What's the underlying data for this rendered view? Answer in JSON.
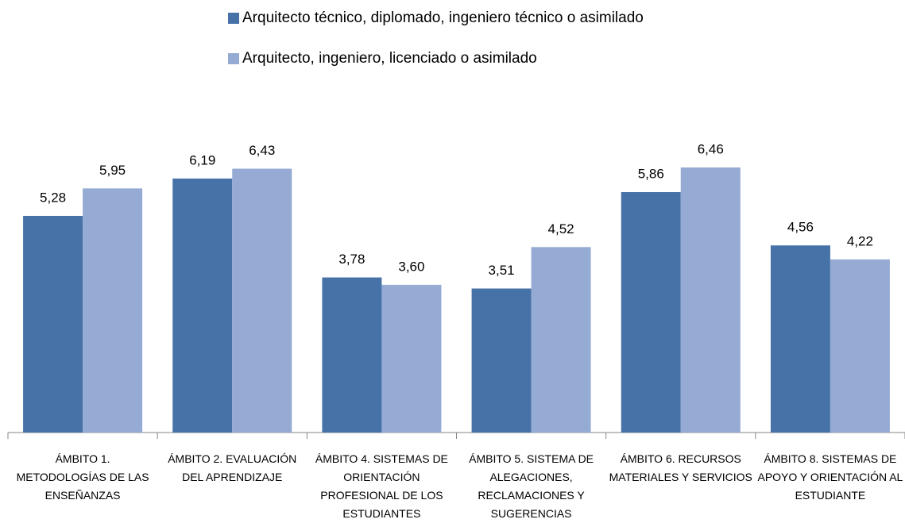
{
  "chart_data": {
    "type": "bar",
    "categories": [
      "ÁMBITO 1. METODOLOGÍAS DE LAS ENSEÑANZAS",
      "ÁMBITO 2. EVALUACIÓN DEL APRENDIZAJE",
      "ÁMBITO 4. SISTEMAS DE ORIENTACIÓN PROFESIONAL DE LOS ESTUDIANTES",
      "ÁMBITO 5. SISTEMA DE ALEGACIONES, RECLAMACIONES Y SUGERENCIAS",
      "ÁMBITO 6. RECURSOS MATERIALES Y SERVICIOS",
      "ÁMBITO 8. SISTEMAS DE APOYO Y ORIENTACIÓN AL ESTUDIANTE"
    ],
    "series": [
      {
        "name": "Arquitecto técnico, diplomado, ingeniero técnico o asimilado",
        "color": "#4672a8",
        "values": [
          5.28,
          6.19,
          3.78,
          3.51,
          5.86,
          4.56
        ],
        "value_labels": [
          "5,28",
          "6,19",
          "3,78",
          "3,51",
          "5,86",
          "4,56"
        ]
      },
      {
        "name": "Arquitecto, ingeniero, licenciado o asimilado",
        "color": "#95abd4",
        "values": [
          5.95,
          6.43,
          3.6,
          4.52,
          6.46,
          4.22
        ],
        "value_labels": [
          "5,95",
          "6,43",
          "3,60",
          "4,52",
          "6,46",
          "4,22"
        ]
      }
    ],
    "legend": "top"
  }
}
